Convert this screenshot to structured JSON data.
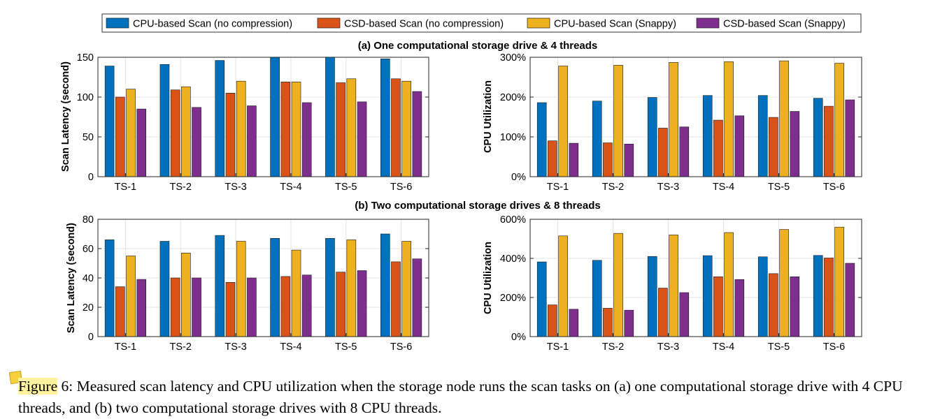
{
  "legend": [
    {
      "label": "CPU-based Scan (no compression)",
      "color": "#0072bd"
    },
    {
      "label": "CSD-based Scan (no compression)",
      "color": "#d95319"
    },
    {
      "label": "CPU-based Scan (Snappy)",
      "color": "#edb120"
    },
    {
      "label": "CSD-based Scan (Snappy)",
      "color": "#7e2f8e"
    }
  ],
  "section_titles": {
    "a": "(a) One computational storage drive & 4 threads",
    "b": "(b) Two computational storage drives & 8 threads"
  },
  "caption": {
    "figure_word": "Figure",
    "text": " 6: Measured scan latency and CPU utilization when the storage node runs the scan tasks on (a) one computational storage drive with 4 CPU threads, and (b) two computational storage drives with 8 CPU threads."
  },
  "chart_data": [
    {
      "type": "bar",
      "ylabel": "Scan Latency (second)",
      "categories": [
        "TS-1",
        "TS-2",
        "TS-3",
        "TS-4",
        "TS-5",
        "TS-6"
      ],
      "ylim": [
        0,
        150
      ],
      "yticks": [
        "0",
        "50",
        "100",
        "150"
      ],
      "yticks_values": [
        0,
        50,
        100,
        150
      ],
      "grid": true,
      "series": [
        {
          "name": "CPU-based Scan (no compression)",
          "values": [
            139,
            141,
            146,
            150,
            150,
            148
          ]
        },
        {
          "name": "CSD-based Scan (no compression)",
          "values": [
            100,
            109,
            105,
            119,
            118,
            123
          ]
        },
        {
          "name": "CPU-based Scan (Snappy)",
          "values": [
            110,
            113,
            120,
            119,
            123,
            120
          ]
        },
        {
          "name": "CSD-based Scan (Snappy)",
          "values": [
            85,
            87,
            89,
            93,
            94,
            107
          ]
        }
      ]
    },
    {
      "type": "bar",
      "ylabel": "CPU Utilization",
      "categories": [
        "TS-1",
        "TS-2",
        "TS-3",
        "TS-4",
        "TS-5",
        "TS-6"
      ],
      "ylim": [
        0,
        300
      ],
      "yticks": [
        "0%",
        "100%",
        "200%",
        "300%"
      ],
      "yticks_values": [
        0,
        100,
        200,
        300
      ],
      "grid": true,
      "series": [
        {
          "name": "CPU-based Scan (no compression)",
          "values": [
            186,
            190,
            199,
            204,
            204,
            197
          ]
        },
        {
          "name": "CSD-based Scan (no compression)",
          "values": [
            90,
            85,
            122,
            142,
            149,
            177
          ]
        },
        {
          "name": "CPU-based Scan (Snappy)",
          "values": [
            278,
            280,
            287,
            289,
            291,
            285
          ]
        },
        {
          "name": "CSD-based Scan (Snappy)",
          "values": [
            84,
            82,
            125,
            153,
            164,
            193
          ]
        }
      ]
    },
    {
      "type": "bar",
      "ylabel": "Scan Latency (second)",
      "categories": [
        "TS-1",
        "TS-2",
        "TS-3",
        "TS-4",
        "TS-5",
        "TS-6"
      ],
      "ylim": [
        0,
        80
      ],
      "yticks": [
        "0",
        "20",
        "40",
        "60",
        "80"
      ],
      "yticks_values": [
        0,
        20,
        40,
        60,
        80
      ],
      "grid": true,
      "series": [
        {
          "name": "CPU-based Scan (no compression)",
          "values": [
            66,
            65,
            69,
            67,
            67,
            70
          ]
        },
        {
          "name": "CSD-based Scan (no compression)",
          "values": [
            34,
            40,
            37,
            41,
            44,
            51
          ]
        },
        {
          "name": "CPU-based Scan (Snappy)",
          "values": [
            55,
            57,
            65,
            59,
            66,
            65
          ]
        },
        {
          "name": "CSD-based Scan (Snappy)",
          "values": [
            39,
            40,
            40,
            42,
            45,
            53
          ]
        }
      ]
    },
    {
      "type": "bar",
      "ylabel": "CPU Utilization",
      "categories": [
        "TS-1",
        "TS-2",
        "TS-3",
        "TS-4",
        "TS-5",
        "TS-6"
      ],
      "ylim": [
        0,
        600
      ],
      "yticks": [
        "0%",
        "200%",
        "400%",
        "600%"
      ],
      "yticks_values": [
        0,
        200,
        400,
        600
      ],
      "grid": true,
      "series": [
        {
          "name": "CPU-based Scan (no compression)",
          "values": [
            382,
            390,
            410,
            414,
            408,
            415
          ]
        },
        {
          "name": "CSD-based Scan (no compression)",
          "values": [
            162,
            145,
            248,
            306,
            322,
            402
          ]
        },
        {
          "name": "CPU-based Scan (Snappy)",
          "values": [
            515,
            528,
            520,
            532,
            548,
            560
          ]
        },
        {
          "name": "CSD-based Scan (Snappy)",
          "values": [
            140,
            135,
            225,
            292,
            306,
            375
          ]
        }
      ]
    }
  ]
}
